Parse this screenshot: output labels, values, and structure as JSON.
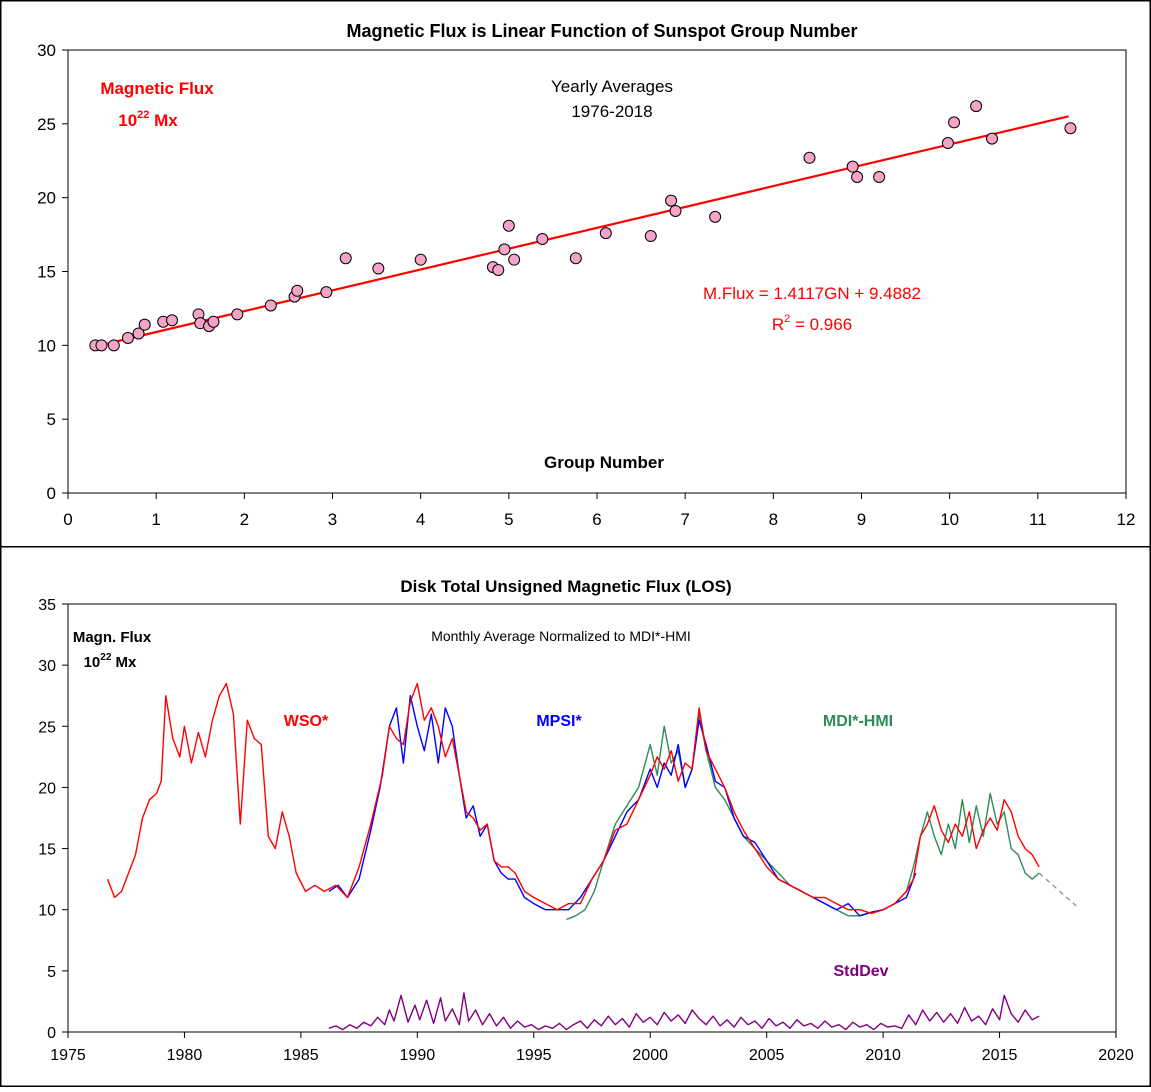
{
  "chart_data": [
    {
      "type": "scatter",
      "title": "Magnetic Flux is Linear Function of Sunspot Group Number",
      "ylabel": "Magnetic Flux",
      "ylabel_unit": "10²² Mx",
      "ylabel_unit_base": "10",
      "ylabel_unit_exp": "22",
      "ylabel_unit_rest": " Mx",
      "xlabel": "Group Number",
      "annotation_line1": "Yearly Averages",
      "annotation_line2": "1976-2018",
      "fit_equation": "M.Flux = 1.4117GN + 9.4882",
      "r2_text": "R² = 0.966",
      "r2_base": "R",
      "r2_exp": "2",
      "r2_rest": " = 0.966",
      "xlim": [
        0,
        12
      ],
      "ylim": [
        0,
        30
      ],
      "xticks": [
        "0",
        "1",
        "2",
        "3",
        "4",
        "5",
        "6",
        "7",
        "8",
        "9",
        "10",
        "11",
        "12"
      ],
      "yticks": [
        "0",
        "5",
        "10",
        "15",
        "20",
        "25",
        "30"
      ],
      "fit": {
        "slope": 1.4117,
        "intercept": 9.4882,
        "x_range": [
          0.3,
          11.35
        ]
      },
      "marker_color": "#f5a3c7",
      "line_color": "#ff0000",
      "points": [
        [
          0.31,
          10.0
        ],
        [
          0.38,
          10.0
        ],
        [
          0.52,
          10.0
        ],
        [
          0.68,
          10.5
        ],
        [
          0.8,
          10.8
        ],
        [
          0.87,
          11.4
        ],
        [
          1.08,
          11.6
        ],
        [
          1.18,
          11.7
        ],
        [
          1.48,
          12.1
        ],
        [
          1.5,
          11.5
        ],
        [
          1.6,
          11.3
        ],
        [
          1.65,
          11.6
        ],
        [
          1.92,
          12.1
        ],
        [
          2.3,
          12.7
        ],
        [
          2.57,
          13.3
        ],
        [
          2.6,
          13.7
        ],
        [
          2.93,
          13.6
        ],
        [
          3.15,
          15.9
        ],
        [
          3.52,
          15.2
        ],
        [
          4.0,
          15.8
        ],
        [
          4.82,
          15.3
        ],
        [
          4.88,
          15.1
        ],
        [
          4.95,
          16.5
        ],
        [
          5.0,
          18.1
        ],
        [
          5.06,
          15.8
        ],
        [
          5.38,
          17.2
        ],
        [
          5.76,
          15.9
        ],
        [
          6.1,
          17.6
        ],
        [
          6.61,
          17.4
        ],
        [
          6.84,
          19.8
        ],
        [
          6.89,
          19.1
        ],
        [
          7.34,
          18.7
        ],
        [
          8.41,
          22.7
        ],
        [
          8.9,
          22.1
        ],
        [
          8.95,
          21.4
        ],
        [
          9.2,
          21.4
        ],
        [
          9.98,
          23.7
        ],
        [
          10.05,
          25.1
        ],
        [
          10.3,
          26.2
        ],
        [
          10.48,
          24.0
        ],
        [
          11.37,
          24.7
        ]
      ]
    },
    {
      "type": "line",
      "title": "Disk Total Unsigned Magnetic Flux (LOS)",
      "ylabel": "Magn. Flux",
      "ylabel_unit": "10²² Mx",
      "ylabel_unit_base": "10",
      "ylabel_unit_exp": "22",
      "ylabel_unit_rest": " Mx",
      "annotation": "Monthly Average Normalized to MDI*-HMI",
      "xlim": [
        1975,
        2020
      ],
      "ylim": [
        0,
        35
      ],
      "xticks": [
        "1975",
        "1980",
        "1985",
        "1990",
        "1995",
        "2000",
        "2005",
        "2010",
        "2015",
        "2020"
      ],
      "yticks": [
        "0",
        "5",
        "10",
        "15",
        "20",
        "25",
        "30",
        "35"
      ],
      "series": [
        {
          "name": "WSO*",
          "color": "#ff0000",
          "x": [
            1976.7,
            1977.0,
            1977.3,
            1977.6,
            1977.9,
            1978.2,
            1978.5,
            1978.8,
            1979.0,
            1979.2,
            1979.5,
            1979.8,
            1980.0,
            1980.3,
            1980.6,
            1980.9,
            1981.2,
            1981.5,
            1981.8,
            1982.1,
            1982.4,
            1982.7,
            1983.0,
            1983.3,
            1983.6,
            1983.9,
            1984.2,
            1984.5,
            1984.8,
            1985.2,
            1985.6,
            1986.0,
            1986.5,
            1987.0,
            1987.5,
            1988.0,
            1988.5,
            1988.8,
            1989.1,
            1989.4,
            1989.7,
            1990.0,
            1990.3,
            1990.6,
            1990.9,
            1991.2,
            1991.5,
            1991.8,
            1992.1,
            1992.4,
            1992.7,
            1993.0,
            1993.3,
            1993.6,
            1993.9,
            1994.2,
            1994.6,
            1995.0,
            1995.5,
            1996.0,
            1996.5,
            1997.0,
            1997.5,
            1998.0,
            1998.5,
            1999.0,
            1999.5,
            2000.0,
            2000.3,
            2000.6,
            2000.9,
            2001.2,
            2001.5,
            2001.8,
            2002.1,
            2002.4,
            2002.8,
            2003.2,
            2003.6,
            2004.0,
            2004.5,
            2005.0,
            2005.5,
            2006.0,
            2006.5,
            2007.0,
            2007.5,
            2008.0,
            2008.5,
            2009.0,
            2009.5,
            2010.0,
            2010.5,
            2011.0,
            2011.3,
            2011.6,
            2011.9,
            2012.2,
            2012.5,
            2012.8,
            2013.1,
            2013.4,
            2013.7,
            2014.0,
            2014.3,
            2014.6,
            2014.9,
            2015.2,
            2015.5,
            2015.8,
            2016.1,
            2016.4,
            2016.7
          ],
          "y": [
            12.5,
            11.0,
            11.5,
            13.0,
            14.5,
            17.5,
            19.0,
            19.5,
            20.5,
            27.5,
            24.0,
            22.5,
            25.0,
            22.0,
            24.5,
            22.5,
            25.5,
            27.5,
            28.5,
            26.0,
            17.0,
            25.5,
            24.0,
            23.5,
            16.0,
            15.0,
            18.0,
            16.0,
            13.0,
            11.5,
            12.0,
            11.5,
            12.0,
            11.0,
            13.5,
            17.0,
            21.0,
            25.0,
            24.0,
            23.5,
            27.0,
            28.5,
            25.5,
            26.5,
            25.0,
            22.5,
            24.0,
            21.0,
            18.0,
            17.5,
            16.5,
            17.0,
            14.0,
            13.5,
            13.5,
            13.0,
            11.5,
            11.0,
            10.5,
            10.0,
            10.5,
            10.5,
            12.5,
            14.0,
            16.5,
            17.0,
            19.0,
            21.0,
            22.5,
            21.5,
            23.0,
            20.5,
            22.0,
            21.5,
            26.5,
            23.0,
            21.5,
            20.0,
            18.0,
            16.5,
            15.0,
            13.5,
            12.5,
            12.0,
            11.5,
            11.0,
            11.0,
            10.5,
            10.0,
            10.0,
            9.7,
            10.0,
            10.5,
            11.5,
            12.5,
            16.0,
            17.0,
            18.5,
            16.5,
            15.5,
            17.0,
            16.0,
            18.0,
            15.0,
            16.5,
            17.5,
            16.5,
            19.0,
            18.0,
            16.0,
            15.0,
            14.5,
            13.5
          ]
        },
        {
          "name": "MPSI*",
          "color": "#0000ff",
          "x": [
            1986.2,
            1986.6,
            1987.0,
            1987.5,
            1988.0,
            1988.4,
            1988.8,
            1989.1,
            1989.4,
            1989.7,
            1990.0,
            1990.3,
            1990.6,
            1990.9,
            1991.2,
            1991.5,
            1991.8,
            1992.1,
            1992.4,
            1992.7,
            1993.0,
            1993.3,
            1993.6,
            1993.9,
            1994.2,
            1994.6,
            1995.0,
            1995.5,
            1996.0,
            1996.5,
            1997.0,
            1997.5,
            1998.0,
            1998.5,
            1999.0,
            1999.5,
            2000.0,
            2000.3,
            2000.6,
            2000.9,
            2001.2,
            2001.5,
            2001.8,
            2002.1,
            2002.4,
            2002.8,
            2003.2,
            2003.6,
            2004.0,
            2004.5,
            2005.0,
            2005.5,
            2006.0,
            2006.5,
            2007.0,
            2007.5,
            2008.0,
            2008.5,
            2009.0,
            2009.5,
            2010.0,
            2010.5,
            2011.0,
            2011.4
          ],
          "y": [
            11.5,
            12.0,
            11.0,
            12.5,
            16.5,
            20.0,
            25.0,
            26.5,
            22.0,
            27.5,
            25.0,
            23.0,
            26.0,
            22.0,
            26.5,
            25.0,
            21.0,
            17.5,
            18.5,
            16.0,
            17.0,
            14.0,
            13.0,
            12.5,
            12.5,
            11.0,
            10.5,
            10.0,
            10.0,
            10.0,
            11.0,
            12.5,
            14.0,
            16.0,
            18.0,
            19.0,
            21.5,
            20.0,
            22.0,
            21.0,
            23.5,
            20.0,
            21.5,
            25.5,
            23.5,
            20.5,
            20.0,
            17.5,
            16.0,
            15.5,
            14.0,
            12.5,
            12.0,
            11.5,
            11.0,
            10.5,
            10.0,
            10.5,
            9.5,
            9.8,
            10.0,
            10.5,
            11.0,
            13.0
          ]
        },
        {
          "name": "MDI*-HMI",
          "color": "#2e8b57",
          "x": [
            1996.4,
            1996.8,
            1997.2,
            1997.6,
            1998.0,
            1998.5,
            1999.0,
            1999.5,
            2000.0,
            2000.3,
            2000.6,
            2000.9,
            2001.2,
            2001.5,
            2001.8,
            2002.1,
            2002.4,
            2002.8,
            2003.2,
            2003.6,
            2004.0,
            2004.5,
            2005.0,
            2005.5,
            2006.0,
            2006.5,
            2007.0,
            2007.5,
            2008.0,
            2008.5,
            2009.0,
            2009.5,
            2010.0,
            2010.5,
            2011.0,
            2011.3,
            2011.6,
            2011.9,
            2012.2,
            2012.5,
            2012.8,
            2013.1,
            2013.4,
            2013.7,
            2014.0,
            2014.3,
            2014.6,
            2014.9,
            2015.2,
            2015.5,
            2015.8,
            2016.1,
            2016.4,
            2016.7
          ],
          "y": [
            9.2,
            9.5,
            10.0,
            11.5,
            14.0,
            17.0,
            18.5,
            20.0,
            23.5,
            21.0,
            25.0,
            22.0,
            23.0,
            20.0,
            21.5,
            26.0,
            23.0,
            20.0,
            19.0,
            17.5,
            16.0,
            15.0,
            14.0,
            13.0,
            12.0,
            11.5,
            11.0,
            10.5,
            10.0,
            9.5,
            9.5,
            9.8,
            10.0,
            10.5,
            11.5,
            13.5,
            16.0,
            18.0,
            16.0,
            14.5,
            17.0,
            15.0,
            19.0,
            15.5,
            18.5,
            16.0,
            19.5,
            17.0,
            18.0,
            15.0,
            14.5,
            13.0,
            12.5,
            13.0
          ]
        },
        {
          "name": "StdDev",
          "color": "#800080",
          "x": [
            1986.2,
            1986.5,
            1986.8,
            1987.1,
            1987.4,
            1987.7,
            1988.0,
            1988.3,
            1988.6,
            1988.8,
            1989.0,
            1989.3,
            1989.6,
            1989.9,
            1990.1,
            1990.4,
            1990.7,
            1991.0,
            1991.2,
            1991.5,
            1991.8,
            1992.0,
            1992.2,
            1992.5,
            1992.8,
            1993.1,
            1993.4,
            1993.7,
            1994.0,
            1994.3,
            1994.6,
            1994.9,
            1995.2,
            1995.5,
            1995.8,
            1996.1,
            1996.4,
            1996.7,
            1997.0,
            1997.3,
            1997.6,
            1997.9,
            1998.2,
            1998.5,
            1998.8,
            1999.1,
            1999.4,
            1999.7,
            2000.0,
            2000.3,
            2000.6,
            2000.9,
            2001.2,
            2001.5,
            2001.8,
            2002.1,
            2002.4,
            2002.7,
            2003.0,
            2003.3,
            2003.6,
            2003.9,
            2004.2,
            2004.5,
            2004.8,
            2005.1,
            2005.4,
            2005.7,
            2006.0,
            2006.3,
            2006.6,
            2006.9,
            2007.2,
            2007.5,
            2007.8,
            2008.1,
            2008.4,
            2008.7,
            2009.0,
            2009.3,
            2009.6,
            2009.9,
            2010.2,
            2010.5,
            2010.8,
            2011.1,
            2011.4,
            2011.7,
            2012.0,
            2012.3,
            2012.6,
            2012.9,
            2013.2,
            2013.5,
            2013.8,
            2014.1,
            2014.4,
            2014.7,
            2015.0,
            2015.2,
            2015.5,
            2015.8,
            2016.1,
            2016.4,
            2016.7
          ],
          "y": [
            0.3,
            0.5,
            0.2,
            0.6,
            0.3,
            0.8,
            0.5,
            1.2,
            0.6,
            1.8,
            0.9,
            3.0,
            0.8,
            2.2,
            1.0,
            2.6,
            0.7,
            2.8,
            0.9,
            1.9,
            0.6,
            3.2,
            0.9,
            1.8,
            0.6,
            1.5,
            0.5,
            1.2,
            0.3,
            0.9,
            0.4,
            0.6,
            0.2,
            0.5,
            0.3,
            0.7,
            0.2,
            0.6,
            0.9,
            0.3,
            1.0,
            0.5,
            1.3,
            0.6,
            1.1,
            0.4,
            1.5,
            0.8,
            1.2,
            0.6,
            1.6,
            0.9,
            1.4,
            0.7,
            1.8,
            1.1,
            0.6,
            1.3,
            0.5,
            1.0,
            0.4,
            1.2,
            0.6,
            0.9,
            0.3,
            1.1,
            0.5,
            0.8,
            0.3,
            1.0,
            0.5,
            0.7,
            0.3,
            0.9,
            0.4,
            0.6,
            0.2,
            0.8,
            0.4,
            0.6,
            0.2,
            0.7,
            0.4,
            0.5,
            0.3,
            1.4,
            0.6,
            1.8,
            0.9,
            1.6,
            0.8,
            1.5,
            0.7,
            2.0,
            0.9,
            1.3,
            0.6,
            1.9,
            1.0,
            3.0,
            1.5,
            0.8,
            1.8,
            1.0,
            1.3
          ]
        }
      ],
      "extrapolation": {
        "x": [
          2016.7,
          2018.3
        ],
        "y": [
          13.0,
          10.3
        ],
        "style": "dashed",
        "color": "#888888"
      }
    }
  ]
}
